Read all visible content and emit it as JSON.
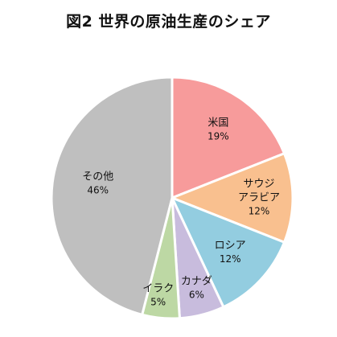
{
  "chart_data": {
    "type": "pie",
    "title": "図2 世界の原油生産のシェア",
    "slices": [
      {
        "label_lines": [
          "米国"
        ],
        "value": 19,
        "value_label": "19%",
        "color": "#f79b9b"
      },
      {
        "label_lines": [
          "サウジ",
          "アラビア"
        ],
        "value": 12,
        "value_label": "12%",
        "color": "#f9c08f"
      },
      {
        "label_lines": [
          "ロシア"
        ],
        "value": 12,
        "value_label": "12%",
        "color": "#93cde0"
      },
      {
        "label_lines": [
          "カナダ"
        ],
        "value": 6,
        "value_label": "6%",
        "color": "#c8bcdd"
      },
      {
        "label_lines": [
          "イラク"
        ],
        "value": 5,
        "value_label": "5%",
        "color": "#bdd8a4"
      },
      {
        "label_lines": [
          "その他"
        ],
        "value": 46,
        "value_label": "46%",
        "color": "#bfbfbf"
      }
    ],
    "start": "12 o'clock",
    "direction": "clockwise"
  }
}
